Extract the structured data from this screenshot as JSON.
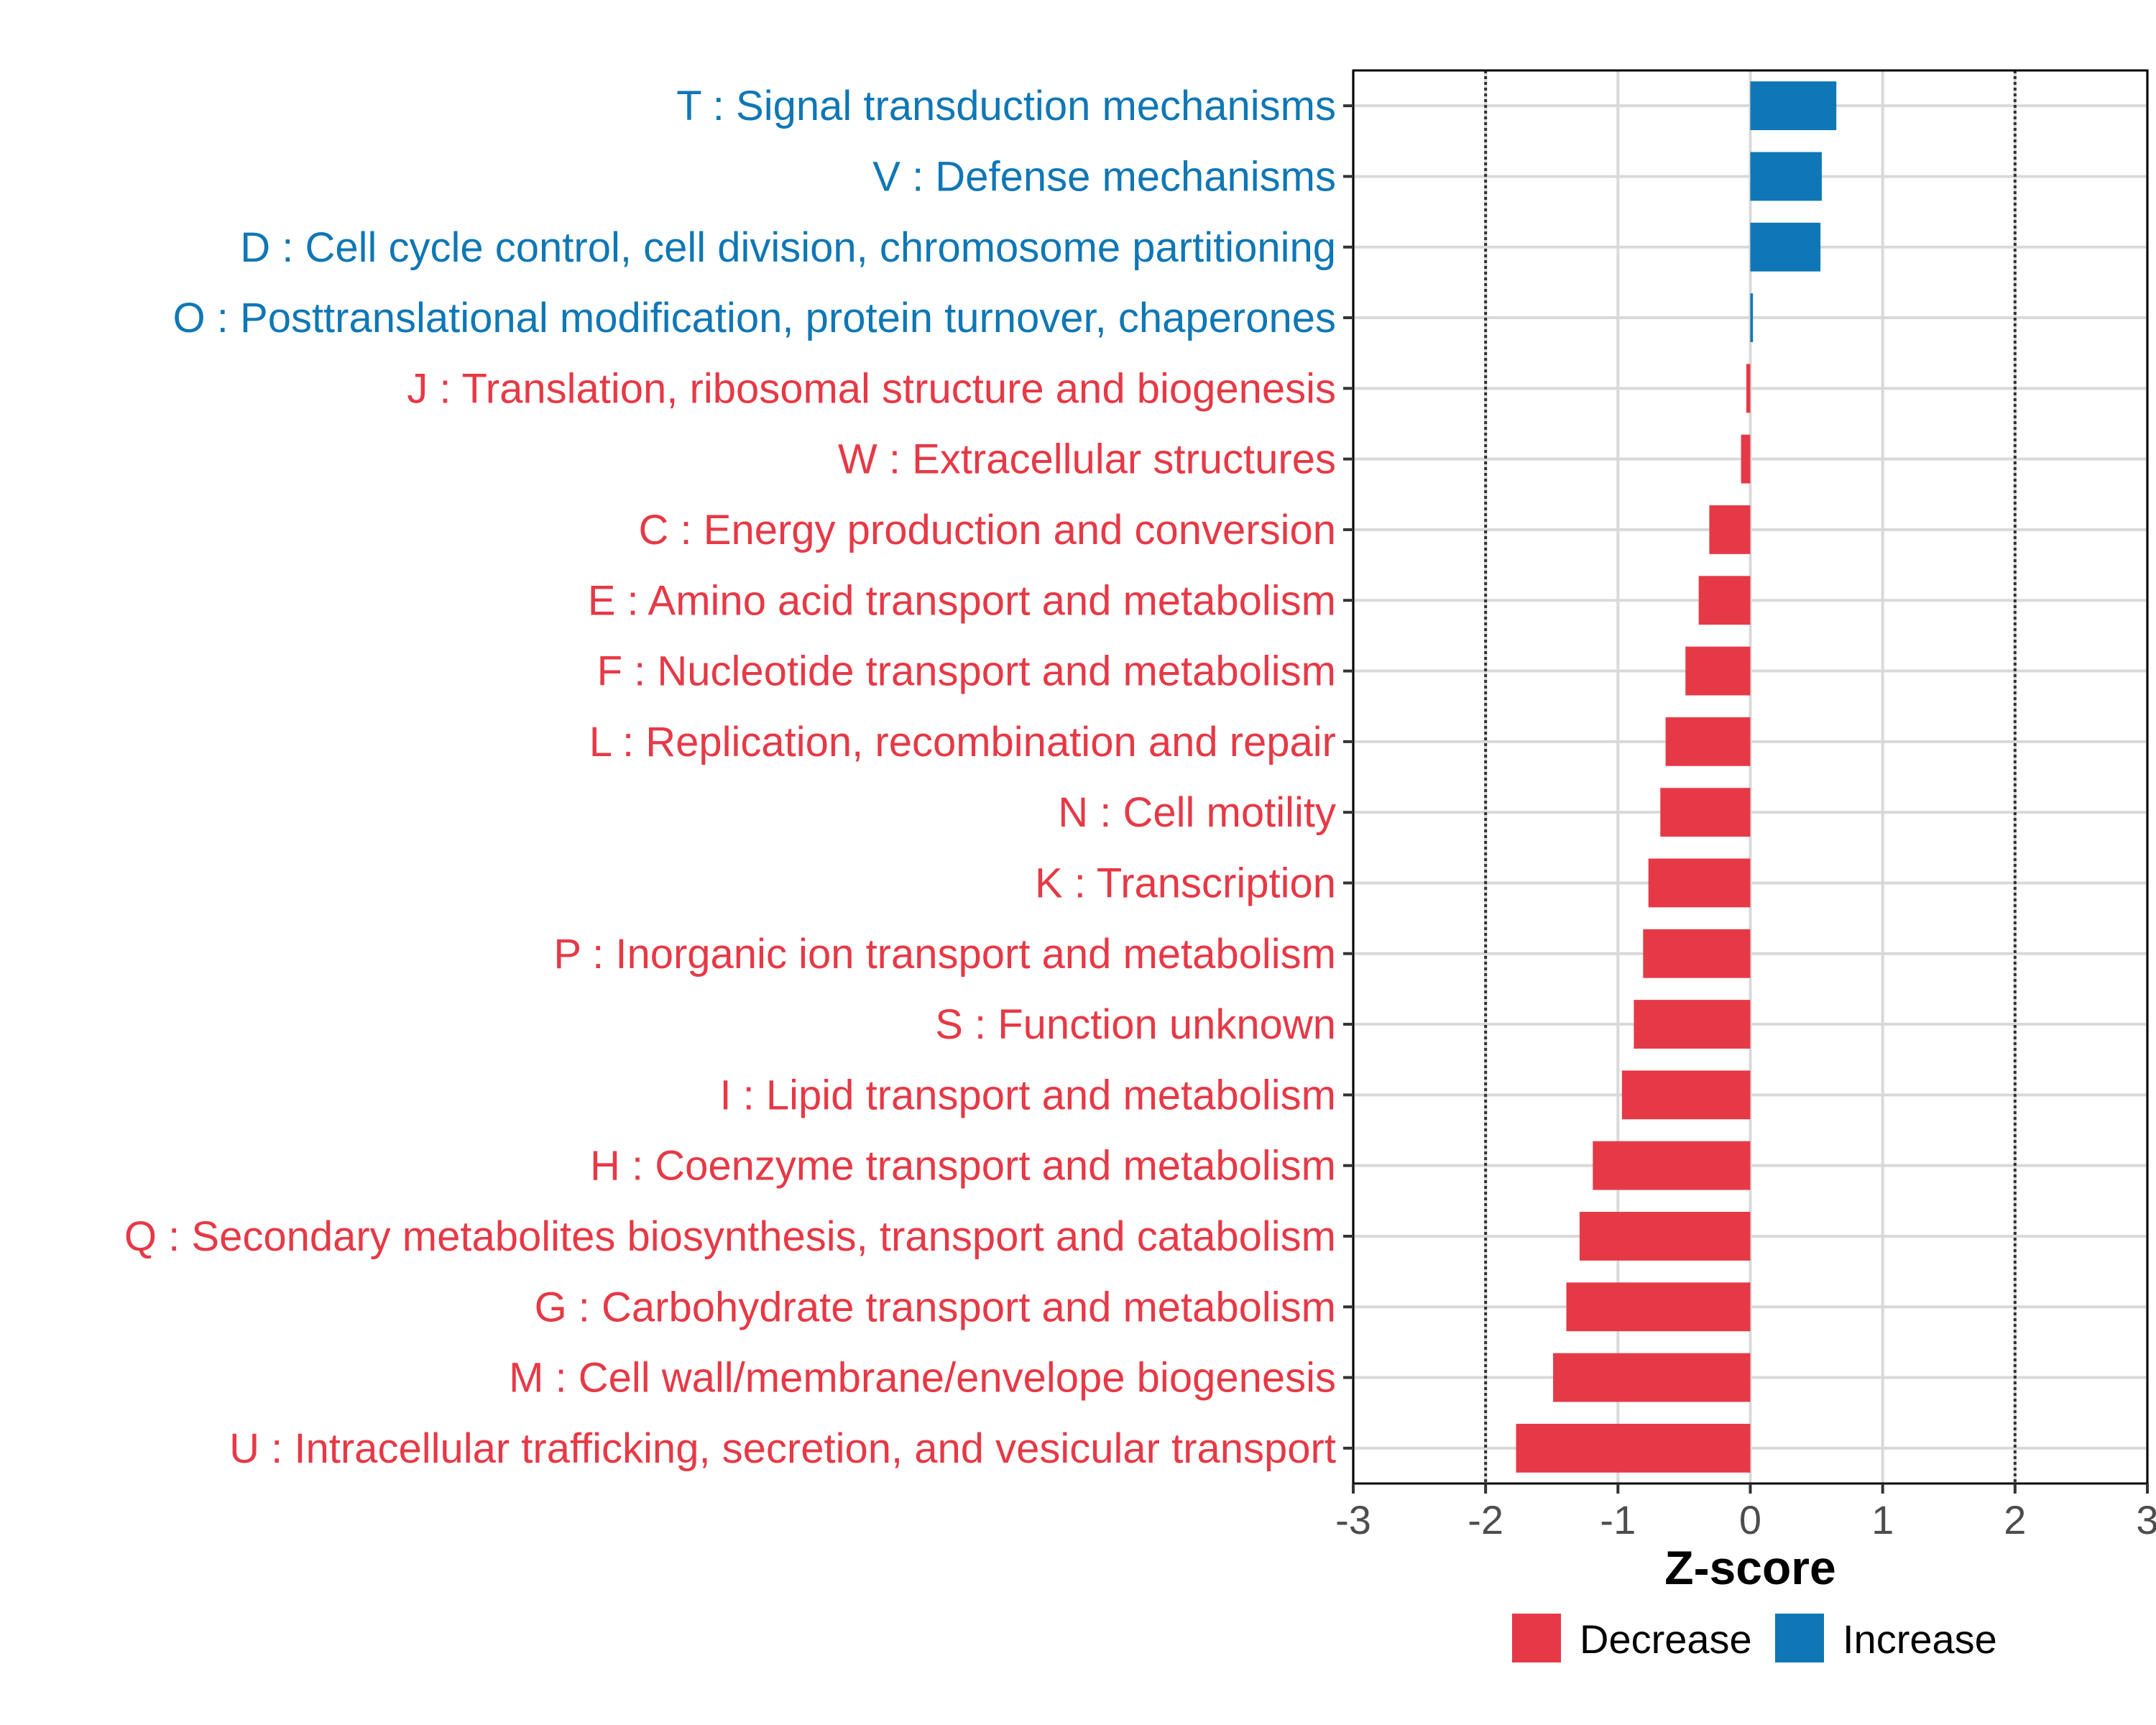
{
  "chart_data": {
    "type": "bar",
    "orientation": "horizontal",
    "xlabel": "Z-score",
    "xlim": [
      -3,
      3
    ],
    "xticks": [
      -3,
      -2,
      -1,
      0,
      1,
      2,
      3
    ],
    "xtick_labels": [
      "-3",
      "-2",
      "-1",
      "0",
      "1",
      "2",
      "3"
    ],
    "reference_lines": [
      -2,
      2
    ],
    "categories": [
      "T : Signal transduction mechanisms",
      "V : Defense mechanisms",
      "D : Cell cycle control, cell division, chromosome partitioning",
      "O : Posttranslational modification, protein turnover, chaperones",
      "J : Translation, ribosomal structure and biogenesis",
      "W : Extracellular structures",
      "C : Energy production and conversion",
      "E : Amino acid transport and metabolism",
      "F : Nucleotide transport and metabolism",
      "L : Replication, recombination and repair",
      "N : Cell motility",
      "K : Transcription",
      "P : Inorganic ion transport and metabolism",
      "S : Function unknown",
      "I : Lipid transport and metabolism",
      "H : Coenzyme transport and metabolism",
      "Q : Secondary metabolites biosynthesis, transport and catabolism",
      "G : Carbohydrate transport and metabolism",
      "M : Cell wall/membrane/envelope biogenesis",
      "U : Intracellular trafficking, secretion, and vesicular transport"
    ],
    "values": [
      0.65,
      0.54,
      0.53,
      0.02,
      -0.03,
      -0.07,
      -0.31,
      -0.39,
      -0.49,
      -0.64,
      -0.68,
      -0.77,
      -0.81,
      -0.88,
      -0.97,
      -1.19,
      -1.29,
      -1.39,
      -1.49,
      -1.77
    ],
    "legend": {
      "placement": "bottom",
      "entries": [
        {
          "label": "Decrease",
          "color": "#e63946"
        },
        {
          "label": "Increase",
          "color": "#0f77b5"
        }
      ]
    },
    "colors": {
      "decrease": "#e63946",
      "increase": "#0f77b5"
    }
  }
}
